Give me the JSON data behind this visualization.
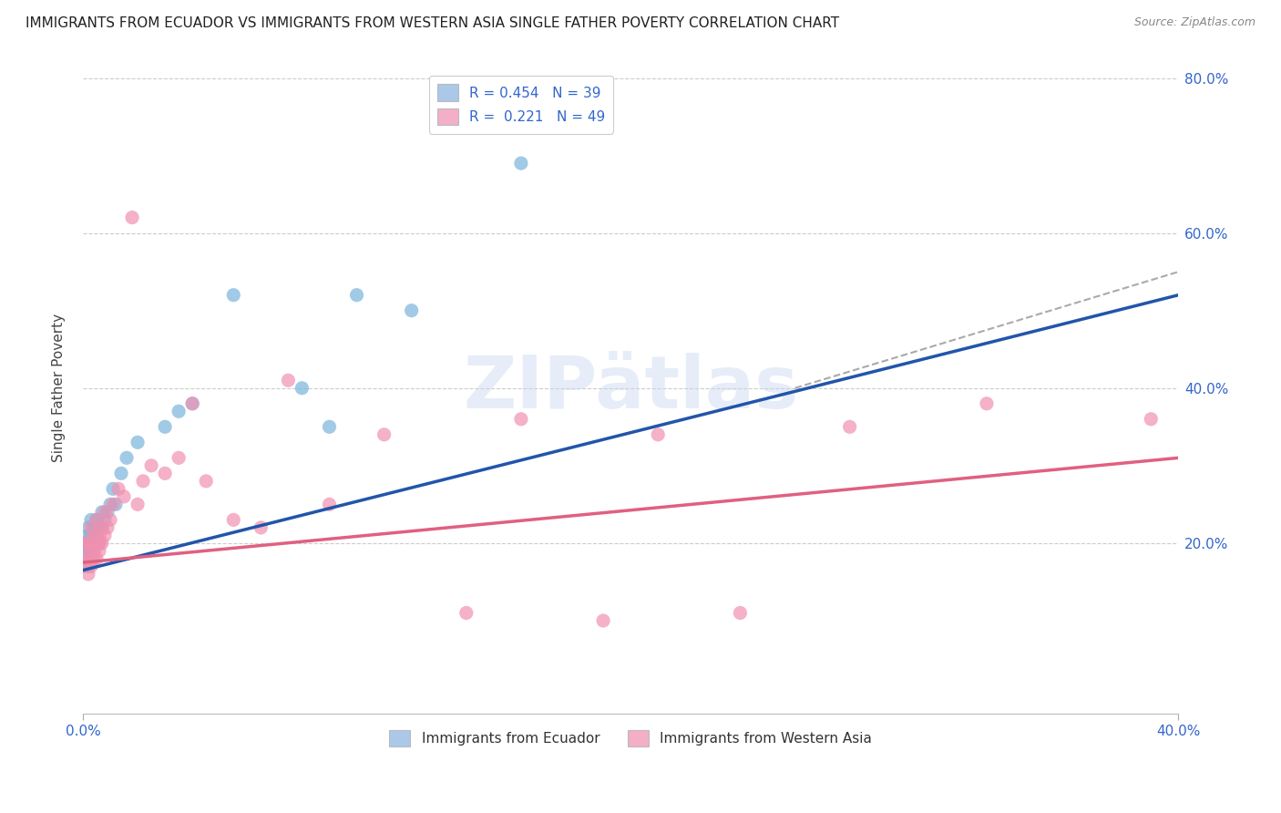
{
  "title": "IMMIGRANTS FROM ECUADOR VS IMMIGRANTS FROM WESTERN ASIA SINGLE FATHER POVERTY CORRELATION CHART",
  "source": "Source: ZipAtlas.com",
  "ylabel": "Single Father Poverty",
  "y_right_labels": [
    "20.0%",
    "40.0%",
    "60.0%",
    "80.0%"
  ],
  "legend_top": [
    {
      "label": "R = 0.454   N = 39",
      "color": "#aac8e8"
    },
    {
      "label": "R =  0.221   N = 49",
      "color": "#f4aec8"
    }
  ],
  "legend_bottom": [
    {
      "label": "Immigrants from Ecuador",
      "color": "#aac8e8"
    },
    {
      "label": "Immigrants from Western Asia",
      "color": "#f4aec8"
    }
  ],
  "ecuador_color": "#7ab4dc",
  "western_asia_color": "#f090b0",
  "ecuador_line_color": "#2255aa",
  "western_asia_line_color": "#e06080",
  "dashed_line_color": "#aaaaaa",
  "background_color": "#ffffff",
  "watermark": "ZIPAtlas",
  "ecuador_x": [
    0.001,
    0.001,
    0.001,
    0.002,
    0.002,
    0.002,
    0.002,
    0.003,
    0.003,
    0.003,
    0.003,
    0.003,
    0.004,
    0.004,
    0.004,
    0.005,
    0.005,
    0.005,
    0.006,
    0.006,
    0.007,
    0.007,
    0.008,
    0.009,
    0.01,
    0.011,
    0.012,
    0.014,
    0.016,
    0.02,
    0.03,
    0.035,
    0.04,
    0.055,
    0.08,
    0.09,
    0.1,
    0.12,
    0.16
  ],
  "ecuador_y": [
    0.18,
    0.19,
    0.2,
    0.17,
    0.19,
    0.21,
    0.22,
    0.18,
    0.19,
    0.2,
    0.21,
    0.23,
    0.19,
    0.2,
    0.22,
    0.2,
    0.21,
    0.23,
    0.2,
    0.22,
    0.22,
    0.24,
    0.23,
    0.24,
    0.25,
    0.27,
    0.25,
    0.29,
    0.31,
    0.33,
    0.35,
    0.37,
    0.38,
    0.52,
    0.4,
    0.35,
    0.52,
    0.5,
    0.69
  ],
  "western_asia_x": [
    0.001,
    0.001,
    0.001,
    0.002,
    0.002,
    0.002,
    0.003,
    0.003,
    0.003,
    0.003,
    0.004,
    0.004,
    0.004,
    0.005,
    0.005,
    0.005,
    0.006,
    0.006,
    0.006,
    0.007,
    0.007,
    0.008,
    0.008,
    0.009,
    0.01,
    0.011,
    0.013,
    0.015,
    0.018,
    0.02,
    0.022,
    0.025,
    0.03,
    0.035,
    0.04,
    0.045,
    0.055,
    0.065,
    0.075,
    0.09,
    0.11,
    0.14,
    0.16,
    0.19,
    0.21,
    0.24,
    0.28,
    0.33,
    0.39
  ],
  "western_asia_y": [
    0.17,
    0.18,
    0.2,
    0.16,
    0.18,
    0.2,
    0.17,
    0.19,
    0.2,
    0.22,
    0.18,
    0.19,
    0.21,
    0.18,
    0.2,
    0.23,
    0.19,
    0.2,
    0.21,
    0.2,
    0.22,
    0.21,
    0.24,
    0.22,
    0.23,
    0.25,
    0.27,
    0.26,
    0.62,
    0.25,
    0.28,
    0.3,
    0.29,
    0.31,
    0.38,
    0.28,
    0.23,
    0.22,
    0.41,
    0.25,
    0.34,
    0.11,
    0.36,
    0.1,
    0.34,
    0.11,
    0.35,
    0.38,
    0.36
  ],
  "xlim": [
    0.0,
    0.4
  ],
  "ylim": [
    -0.02,
    0.82
  ],
  "figsize": [
    14.06,
    8.92
  ],
  "dpi": 100,
  "ecuador_line_x0": 0.0,
  "ecuador_line_y0": 0.165,
  "ecuador_line_x1": 0.4,
  "ecuador_line_y1": 0.52,
  "western_asia_line_x0": 0.0,
  "western_asia_line_y0": 0.175,
  "western_asia_line_x1": 0.4,
  "western_asia_line_y1": 0.31,
  "dashed_line_x0": 0.26,
  "dashed_line_y0": 0.4,
  "dashed_line_x1": 0.4,
  "dashed_line_y1": 0.55
}
